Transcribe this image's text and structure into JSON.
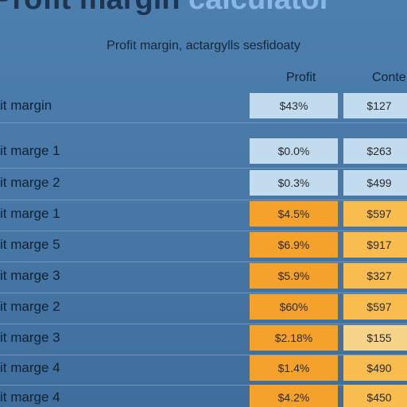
{
  "header": {
    "title": "Profit margin",
    "title_accent": "calculator",
    "subtitle": "Profit margin, actargylls sesfidoaty"
  },
  "table": {
    "columns": [
      "Profit",
      "Conte"
    ],
    "rows": [
      {
        "label": "it margin",
        "cells": [
          "$43%",
          "$127"
        ],
        "colors": [
          "#c3dbef",
          "#c3dbef"
        ]
      },
      {
        "label": "it marge 1",
        "cells": [
          "$0.0%",
          "$263"
        ],
        "colors": [
          "#c3dbef",
          "#c3dbef"
        ]
      },
      {
        "label": "it marge 2",
        "cells": [
          "$0.3%",
          "$499"
        ],
        "colors": [
          "#c3dbef",
          "#c3dbef"
        ]
      },
      {
        "label": "it marge 1",
        "cells": [
          "$4.5%",
          "$597"
        ],
        "colors": [
          "#f5a22c",
          "#f8bd4e"
        ]
      },
      {
        "label": "it marge 5",
        "cells": [
          "$6.9%",
          "$917"
        ],
        "colors": [
          "#f5a22c",
          "#f8bd4e"
        ]
      },
      {
        "label": "it marge 3",
        "cells": [
          "$5.9%",
          "$327"
        ],
        "colors": [
          "#f5a22c",
          "#f8bd4e"
        ]
      },
      {
        "label": "it marge 2",
        "cells": [
          "$60%",
          "$597"
        ],
        "colors": [
          "#f5a22c",
          "#f8bd4e"
        ]
      },
      {
        "label": "it marge 3",
        "cells": [
          "$2.18%",
          "$155"
        ],
        "colors": [
          "#f5a22c",
          "#f8d48a"
        ]
      },
      {
        "label": "it marge 4",
        "cells": [
          "$1.4%",
          "$490"
        ],
        "colors": [
          "#f5a22c",
          "#f8bd4e"
        ]
      },
      {
        "label": "it marge 4",
        "cells": [
          "$4.2%",
          "$450"
        ],
        "colors": [
          "#f5a22c",
          "#f8bd4e"
        ]
      }
    ]
  }
}
